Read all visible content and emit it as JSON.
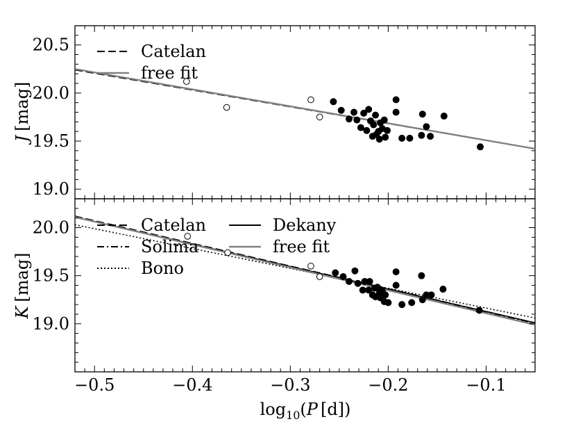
{
  "chart_data": [
    {
      "type": "scatter",
      "panel": "top",
      "ylabel_symbol": "J",
      "ylabel_unit": "[mag]",
      "xlim": [
        -0.52,
        -0.05
      ],
      "ylim": [
        20.7,
        18.9
      ],
      "y_inverted": true,
      "yticks": [
        19.0,
        19.5,
        20.0,
        20.5
      ],
      "ytick_labels": [
        "19.0",
        "19.5",
        "20.0",
        "20.5"
      ],
      "legend_position": "top-left",
      "series": [
        {
          "name": "Catelan",
          "kind": "line",
          "style": "dashed",
          "color": "#000000",
          "line": {
            "x": [
              -0.52,
              -0.05
            ],
            "y": [
              20.24,
              19.42
            ]
          }
        },
        {
          "name": "free fit",
          "kind": "line",
          "style": "solid",
          "color": "#808080",
          "line": {
            "x": [
              -0.52,
              -0.05
            ],
            "y": [
              20.25,
              19.42
            ]
          }
        },
        {
          "name": "filled points",
          "kind": "points",
          "fill": "#000000",
          "points": [
            [
              -0.256,
              19.91
            ],
            [
              -0.248,
              19.82
            ],
            [
              -0.24,
              19.73
            ],
            [
              -0.235,
              19.8
            ],
            [
              -0.232,
              19.72
            ],
            [
              -0.228,
              19.64
            ],
            [
              -0.225,
              19.79
            ],
            [
              -0.222,
              19.61
            ],
            [
              -0.22,
              19.83
            ],
            [
              -0.218,
              19.71
            ],
            [
              -0.216,
              19.55
            ],
            [
              -0.215,
              19.67
            ],
            [
              -0.213,
              19.77
            ],
            [
              -0.212,
              19.57
            ],
            [
              -0.21,
              19.6
            ],
            [
              -0.209,
              19.52
            ],
            [
              -0.208,
              19.69
            ],
            [
              -0.206,
              19.63
            ],
            [
              -0.204,
              19.72
            ],
            [
              -0.203,
              19.54
            ],
            [
              -0.201,
              19.61
            ],
            [
              -0.192,
              19.8
            ],
            [
              -0.192,
              19.93
            ],
            [
              -0.186,
              19.53
            ],
            [
              -0.178,
              19.53
            ],
            [
              -0.166,
              19.56
            ],
            [
              -0.165,
              19.78
            ],
            [
              -0.161,
              19.65
            ],
            [
              -0.157,
              19.55
            ],
            [
              -0.143,
              19.76
            ],
            [
              -0.106,
              19.44
            ]
          ]
        },
        {
          "name": "open points",
          "kind": "points",
          "fill": "#ffffff",
          "points": [
            [
              -0.406,
              20.12
            ],
            [
              -0.365,
              19.85
            ],
            [
              -0.279,
              19.93
            ],
            [
              -0.27,
              19.75
            ]
          ]
        }
      ]
    },
    {
      "type": "scatter",
      "panel": "bottom",
      "xlabel": "log10(P [d])",
      "xlabel_parts": {
        "main": "log",
        "sub": "10",
        "open": "(",
        "var": "P",
        "unit": "[d]",
        "close": ")"
      },
      "ylabel_symbol": "K",
      "ylabel_unit": "[mag]",
      "xlim": [
        -0.52,
        -0.05
      ],
      "ylim": [
        20.3,
        18.5
      ],
      "y_inverted": true,
      "yticks": [
        19.0,
        19.5,
        20.0
      ],
      "ytick_labels": [
        "19.0",
        "19.5",
        "20.0"
      ],
      "xticks": [
        -0.5,
        -0.4,
        -0.3,
        -0.2,
        -0.1
      ],
      "xtick_labels": [
        "−0.5",
        "−0.4",
        "−0.3",
        "−0.2",
        "−0.1"
      ],
      "legend_position": "top-left",
      "series": [
        {
          "name": "Catelan",
          "kind": "line",
          "style": "dashed",
          "color": "#000000",
          "line": {
            "x": [
              -0.52,
              -0.05
            ],
            "y": [
              20.12,
              19.01
            ]
          }
        },
        {
          "name": "Solima",
          "kind": "line",
          "style": "dashdot",
          "color": "#000000",
          "line": {
            "x": [
              -0.52,
              -0.05
            ],
            "y": [
              20.11,
              19.0
            ]
          }
        },
        {
          "name": "Bono",
          "kind": "line",
          "style": "dotted",
          "color": "#000000",
          "line": {
            "x": [
              -0.52,
              -0.05
            ],
            "y": [
              20.03,
              19.06
            ]
          }
        },
        {
          "name": "Dekany",
          "kind": "line",
          "style": "solid",
          "color": "#000000",
          "line": {
            "x": [
              -0.52,
              -0.05
            ],
            "y": [
              20.11,
              19.01
            ]
          }
        },
        {
          "name": "free fit",
          "kind": "line",
          "style": "solid",
          "color": "#808080",
          "line": {
            "x": [
              -0.52,
              -0.05
            ],
            "y": [
              20.11,
              18.99
            ]
          }
        },
        {
          "name": "filled points",
          "kind": "points",
          "fill": "#000000",
          "points": [
            [
              -0.254,
              19.53
            ],
            [
              -0.246,
              19.49
            ],
            [
              -0.24,
              19.44
            ],
            [
              -0.234,
              19.55
            ],
            [
              -0.231,
              19.42
            ],
            [
              -0.226,
              19.35
            ],
            [
              -0.224,
              19.44
            ],
            [
              -0.22,
              19.35
            ],
            [
              -0.219,
              19.44
            ],
            [
              -0.216,
              19.3
            ],
            [
              -0.214,
              19.37
            ],
            [
              -0.213,
              19.28
            ],
            [
              -0.211,
              19.38
            ],
            [
              -0.209,
              19.32
            ],
            [
              -0.208,
              19.27
            ],
            [
              -0.206,
              19.34
            ],
            [
              -0.204,
              19.23
            ],
            [
              -0.203,
              19.3
            ],
            [
              -0.2,
              19.22
            ],
            [
              -0.192,
              19.4
            ],
            [
              -0.192,
              19.54
            ],
            [
              -0.186,
              19.2
            ],
            [
              -0.176,
              19.22
            ],
            [
              -0.166,
              19.5
            ],
            [
              -0.165,
              19.25
            ],
            [
              -0.161,
              19.3
            ],
            [
              -0.156,
              19.3
            ],
            [
              -0.144,
              19.36
            ],
            [
              -0.107,
              19.14
            ]
          ]
        },
        {
          "name": "open points",
          "kind": "points",
          "fill": "#ffffff",
          "points": [
            [
              -0.405,
              19.91
            ],
            [
              -0.364,
              19.74
            ],
            [
              -0.279,
              19.6
            ],
            [
              -0.27,
              19.49
            ]
          ]
        }
      ]
    }
  ],
  "legends": [
    {
      "panel": "top",
      "entries": [
        {
          "label": "Catelan",
          "style": "dashed",
          "color": "#000000"
        },
        {
          "label": "free fit",
          "style": "solid",
          "color": "#808080"
        }
      ]
    },
    {
      "panel": "bottom",
      "entries": [
        {
          "label": "Catelan",
          "style": "dashed",
          "color": "#000000"
        },
        {
          "label": "Solima",
          "style": "dashdot",
          "color": "#000000"
        },
        {
          "label": "Bono",
          "style": "dotted",
          "color": "#000000"
        },
        {
          "label": "Dekany",
          "style": "solid",
          "color": "#000000"
        },
        {
          "label": "free fit",
          "style": "solid",
          "color": "#808080"
        }
      ]
    }
  ]
}
